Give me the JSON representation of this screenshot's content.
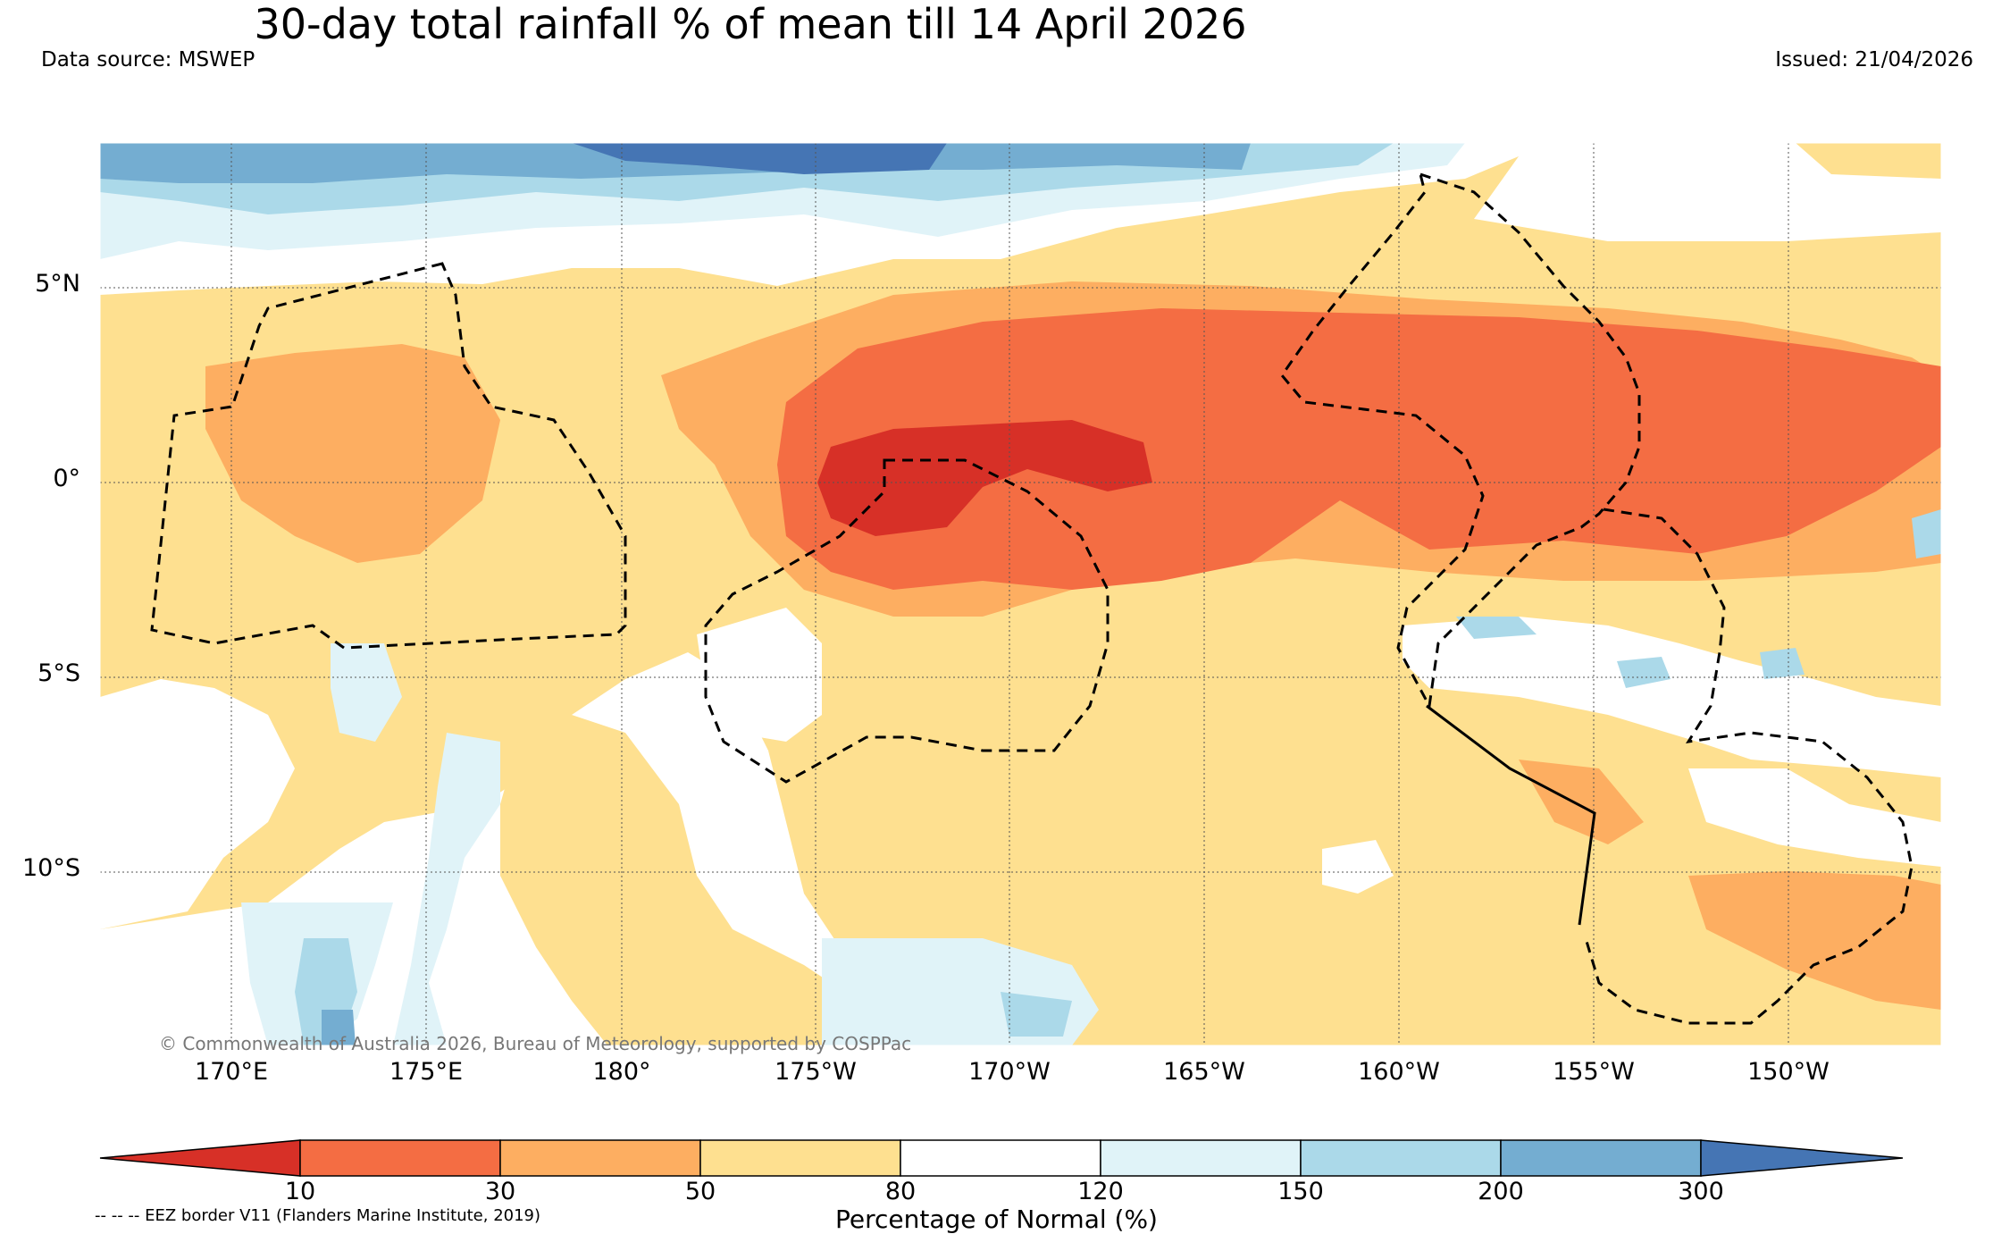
{
  "header": {
    "title": "30-day total rainfall % of mean till 14 April 2026",
    "data_source": "Data source: MSWEP",
    "issued": "Issued: 21/04/2026"
  },
  "map": {
    "lat_labels": [
      "5°N",
      "0°",
      "5°S",
      "10°S"
    ],
    "lon_labels": [
      "170°E",
      "175°E",
      "180°",
      "175°W",
      "170°W",
      "165°W",
      "160°W",
      "155°W",
      "150°W"
    ],
    "copyright": "© Commonwealth of Australia 2026, Bureau of Meteorology, supported by COSPPac"
  },
  "legend": {
    "ticks": [
      "10",
      "30",
      "50",
      "80",
      "120",
      "150",
      "200",
      "300"
    ],
    "title": "Percentage of Normal (%)",
    "eez_note": "-- -- -- EEZ border V11 (Flanders Marine Institute, 2019)",
    "colors": [
      "#d73027",
      "#f46d43",
      "#fdae61",
      "#fee090",
      "#ffffff",
      "#e0f3f8",
      "#abd9e9",
      "#74add1",
      "#4575b4"
    ]
  }
}
